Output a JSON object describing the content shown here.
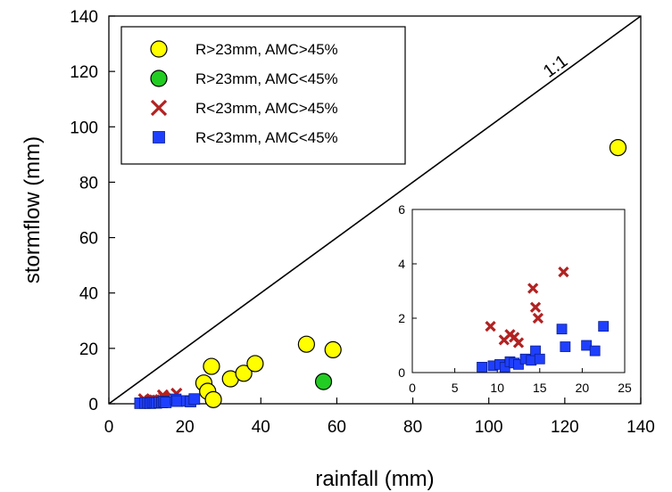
{
  "chart_data": {
    "type": "scatter",
    "xlabel": "rainfall (mm)",
    "ylabel": "stormflow (mm)",
    "xlim": [
      0,
      140
    ],
    "ylim": [
      0,
      140
    ],
    "xticks": [
      0,
      20,
      40,
      60,
      80,
      100,
      120,
      140
    ],
    "yticks": [
      0,
      20,
      40,
      60,
      80,
      100,
      120,
      140
    ],
    "grid": false,
    "legend_position": "top-left",
    "reference_line": {
      "label": "1:1"
    },
    "series": [
      {
        "name": "R>23mm, AMC>45%",
        "marker": "circle",
        "color": "#ffff00",
        "points": [
          [
            134,
            92.5
          ],
          [
            25,
            7.5
          ],
          [
            26,
            4.5
          ],
          [
            27,
            13.5
          ],
          [
            27.5,
            1.5
          ],
          [
            32,
            9
          ],
          [
            35.5,
            11
          ],
          [
            38.5,
            14.5
          ],
          [
            52,
            21.5
          ],
          [
            59,
            19.5
          ]
        ]
      },
      {
        "name": "R>23mm, AMC<45%",
        "marker": "circle",
        "color": "#22cc22",
        "points": [
          [
            56.5,
            8
          ]
        ]
      },
      {
        "name": "R<23mm, AMC>45%",
        "marker": "x",
        "color": "#b22222",
        "points": [
          [
            9.2,
            1.7
          ],
          [
            10.8,
            1.2
          ],
          [
            11.5,
            1.4
          ],
          [
            12.0,
            1.3
          ],
          [
            12.5,
            1.1
          ],
          [
            14.2,
            3.1
          ],
          [
            14.5,
            2.4
          ],
          [
            14.8,
            2.0
          ],
          [
            17.8,
            3.7
          ]
        ]
      },
      {
        "name": "R<23mm, AMC<45%",
        "marker": "square",
        "color": "#1f3fff",
        "points": [
          [
            8.2,
            0.2
          ],
          [
            9.5,
            0.25
          ],
          [
            10.3,
            0.3
          ],
          [
            10.9,
            0.2
          ],
          [
            11.5,
            0.4
          ],
          [
            12.0,
            0.35
          ],
          [
            12.5,
            0.3
          ],
          [
            13.3,
            0.5
          ],
          [
            14.0,
            0.45
          ],
          [
            14.5,
            0.8
          ],
          [
            15.0,
            0.5
          ],
          [
            17.6,
            1.6
          ],
          [
            18.0,
            0.95
          ],
          [
            20.5,
            1.0
          ],
          [
            21.5,
            0.8
          ],
          [
            22.5,
            1.7
          ]
        ]
      }
    ],
    "inset": {
      "xlim": [
        0,
        25
      ],
      "ylim": [
        0,
        6
      ],
      "xticks": [
        0,
        5,
        10,
        15,
        20,
        25
      ],
      "yticks": [
        0,
        2,
        4,
        6
      ],
      "series_refs": [
        "R<23mm, AMC>45%",
        "R<23mm, AMC<45%"
      ]
    }
  }
}
